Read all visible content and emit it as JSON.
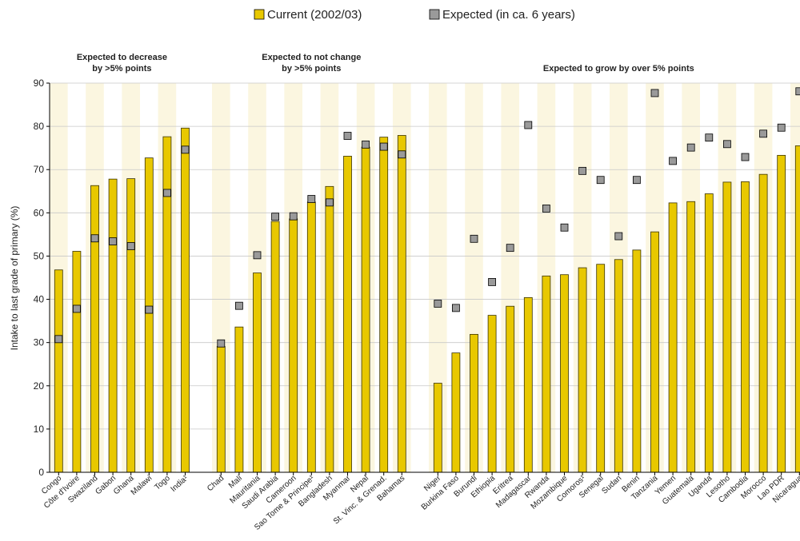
{
  "chart_data": {
    "type": "bar",
    "ylabel": "Intake to last grade of primary (%)",
    "ylim": [
      0,
      90
    ],
    "yticks": [
      0,
      10,
      20,
      30,
      40,
      50,
      60,
      70,
      80,
      90
    ],
    "grid": true,
    "legend": {
      "position": "top-center",
      "entries": [
        {
          "name": "Current (2002/03)",
          "color": "#e8c800"
        },
        {
          "name": "Expected (in ca. 6 years)",
          "color": "#9a9a9a"
        }
      ]
    },
    "groups": [
      {
        "label_lines": [
          "Expected to decrease",
          "by >5% points"
        ],
        "categories": [
          "Congo",
          "Côte d'Ivoire",
          "Swaziland",
          "Gabon",
          "Ghana",
          "Malawi",
          "Togo",
          "India¹"
        ],
        "current": [
          46.8,
          51.1,
          66.3,
          67.8,
          67.9,
          72.7,
          77.6,
          79.6
        ],
        "expected": [
          30.8,
          37.8,
          54.1,
          53.4,
          52.3,
          37.6,
          64.6,
          74.6
        ]
      },
      {
        "label_lines": [
          "Expected to not change",
          "by >5% points"
        ],
        "categories": [
          "Chad",
          "Mali",
          "Mauritania",
          "Saudi Arabia",
          "Cameroon",
          "Sao Tome & Principe¹",
          "Bangladesh",
          "Myanmar",
          "Nepal",
          "St. Vinc. & Grenad.",
          "Bahamas"
        ],
        "current": [
          29.1,
          33.6,
          46.1,
          58.0,
          58.6,
          62.5,
          66.1,
          73.1,
          75.2,
          77.5,
          77.9
        ],
        "expected": [
          29.8,
          38.5,
          50.2,
          59.1,
          59.2,
          63.2,
          62.4,
          77.8,
          75.8,
          75.3,
          73.5
        ]
      },
      {
        "label_lines": [
          "Expected to grow by over 5% points"
        ],
        "categories": [
          "Niger",
          "Burkina Faso",
          "Burundi",
          "Ethiopia",
          "Eritrea",
          "Madagascar",
          "Rwanda",
          "Mozambique",
          "Comoros¹",
          "Senegal",
          "Sudan",
          "Benin",
          "Tanzania",
          "Yemen",
          "Guatemala",
          "Uganda",
          "Lesotho",
          "Cambodia",
          "Morocco",
          "Lao PDR",
          "Nicaragua"
        ],
        "current": [
          20.6,
          27.6,
          31.9,
          36.3,
          38.4,
          40.4,
          45.4,
          45.7,
          47.3,
          48.1,
          49.2,
          51.4,
          55.6,
          62.3,
          62.6,
          64.4,
          67.1,
          67.2,
          68.9,
          73.3,
          75.5
        ],
        "expected": [
          39.0,
          38.0,
          54.0,
          44.0,
          51.9,
          80.3,
          61.0,
          56.6,
          69.7,
          67.6,
          54.6,
          67.6,
          87.7,
          72.0,
          75.1,
          77.4,
          75.9,
          72.9,
          78.3,
          79.7,
          88.1
        ]
      }
    ]
  }
}
